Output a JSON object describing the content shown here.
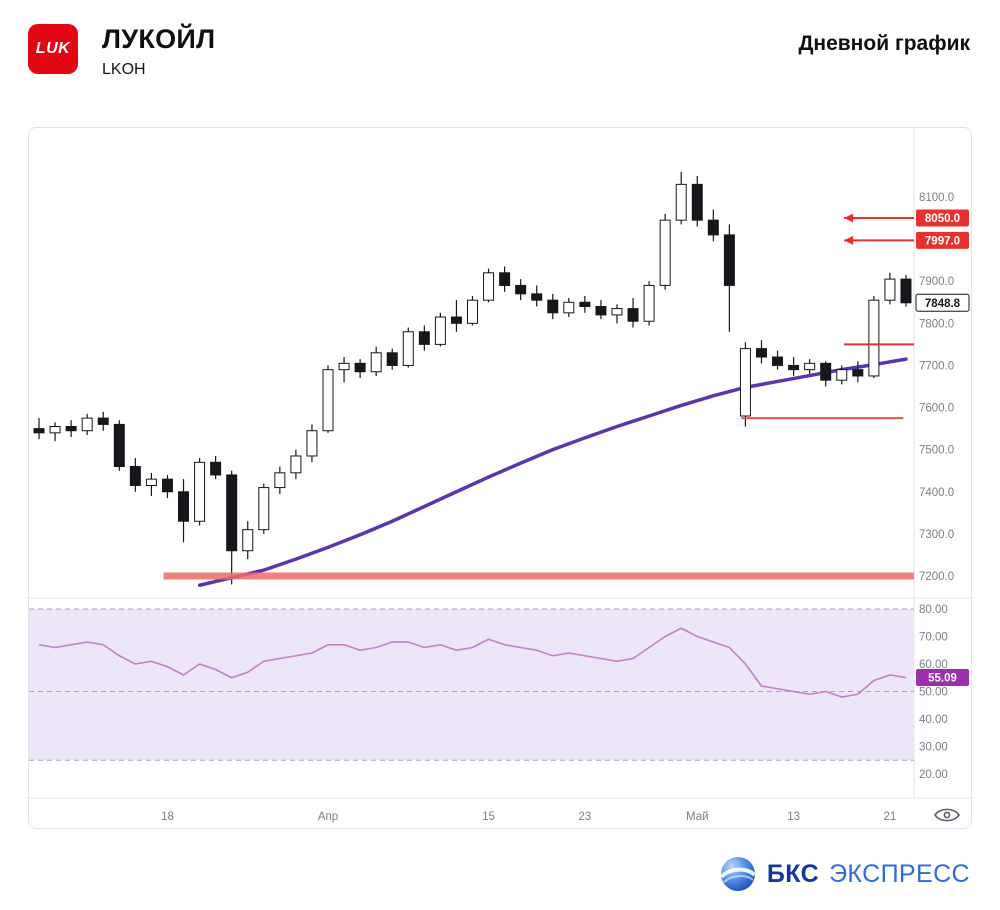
{
  "header": {
    "logo_text": "LUK",
    "title": "ЛУКОЙЛ",
    "ticker": "LKOH",
    "timeframe": "Дневной график"
  },
  "footer": {
    "brand_bold": "БКС",
    "brand_rest": "ЭКСПРЕСС"
  },
  "colors": {
    "candle": "#17171b",
    "axis_text": "#7a7e87",
    "separator": "#e3e3e8",
    "level_red": "#e8312f",
    "support_thick_red": "#f26b66",
    "ma_purple": "#5a35b0",
    "rsi_line": "#c57fc3",
    "rsi_badge": "#9b2fae",
    "rsi_band": "#ece6f8",
    "rsi_guide": "#a9a3b8"
  },
  "chart_data": {
    "type": "candlestick",
    "title": "ЛУКОЙЛ (LKOH) — дневной график",
    "legend_position": "none",
    "grid": false,
    "price_axis": {
      "range": [
        7200,
        8100
      ],
      "ticks": [
        8100,
        7900,
        7800,
        7700,
        7600,
        7500,
        7400,
        7300,
        7200
      ],
      "tick_labels": [
        "8100.0",
        "7900.0",
        "7800.0",
        "7700.0",
        "7600.0",
        "7500.0",
        "7400.0",
        "7300.0",
        "7200.0"
      ],
      "last_price": 7848.8,
      "last_price_label": "7848.8"
    },
    "time_axis": {
      "ticks": [
        {
          "index": 8,
          "label": "18"
        },
        {
          "index": 18,
          "label": "Апр"
        },
        {
          "index": 28,
          "label": "15"
        },
        {
          "index": 34,
          "label": "23"
        },
        {
          "index": 41,
          "label": "Май"
        },
        {
          "index": 47,
          "label": "13"
        },
        {
          "index": 53,
          "label": "21"
        }
      ]
    },
    "candles": [
      [
        7550,
        7575,
        7525,
        7540
      ],
      [
        7540,
        7565,
        7520,
        7555
      ],
      [
        7555,
        7570,
        7530,
        7545
      ],
      [
        7545,
        7585,
        7535,
        7575
      ],
      [
        7575,
        7590,
        7545,
        7560
      ],
      [
        7560,
        7570,
        7450,
        7460
      ],
      [
        7460,
        7480,
        7400,
        7415
      ],
      [
        7415,
        7445,
        7390,
        7430
      ],
      [
        7430,
        7440,
        7385,
        7400
      ],
      [
        7400,
        7430,
        7280,
        7330
      ],
      [
        7330,
        7480,
        7320,
        7470
      ],
      [
        7470,
        7485,
        7430,
        7440
      ],
      [
        7440,
        7450,
        7180,
        7260
      ],
      [
        7260,
        7330,
        7240,
        7310
      ],
      [
        7310,
        7420,
        7300,
        7410
      ],
      [
        7410,
        7460,
        7395,
        7445
      ],
      [
        7445,
        7500,
        7430,
        7485
      ],
      [
        7485,
        7560,
        7470,
        7545
      ],
      [
        7545,
        7700,
        7540,
        7690
      ],
      [
        7690,
        7720,
        7660,
        7705
      ],
      [
        7705,
        7715,
        7670,
        7685
      ],
      [
        7685,
        7745,
        7675,
        7730
      ],
      [
        7730,
        7740,
        7690,
        7700
      ],
      [
        7700,
        7790,
        7695,
        7780
      ],
      [
        7780,
        7795,
        7735,
        7750
      ],
      [
        7750,
        7825,
        7745,
        7815
      ],
      [
        7815,
        7855,
        7780,
        7800
      ],
      [
        7800,
        7865,
        7795,
        7855
      ],
      [
        7855,
        7930,
        7850,
        7920
      ],
      [
        7920,
        7935,
        7875,
        7890
      ],
      [
        7890,
        7905,
        7855,
        7870
      ],
      [
        7870,
        7890,
        7840,
        7855
      ],
      [
        7855,
        7870,
        7810,
        7825
      ],
      [
        7825,
        7860,
        7815,
        7850
      ],
      [
        7850,
        7865,
        7825,
        7840
      ],
      [
        7840,
        7855,
        7810,
        7820
      ],
      [
        7820,
        7845,
        7800,
        7835
      ],
      [
        7835,
        7860,
        7790,
        7805
      ],
      [
        7805,
        7900,
        7795,
        7890
      ],
      [
        7890,
        8060,
        7880,
        8045
      ],
      [
        8045,
        8160,
        8035,
        8130
      ],
      [
        8130,
        8150,
        8030,
        8045
      ],
      [
        8045,
        8070,
        7995,
        8010
      ],
      [
        8010,
        8035,
        7780,
        7890
      ],
      [
        7580,
        7755,
        7555,
        7740
      ],
      [
        7740,
        7760,
        7705,
        7720
      ],
      [
        7720,
        7735,
        7690,
        7700
      ],
      [
        7700,
        7720,
        7675,
        7690
      ],
      [
        7690,
        7715,
        7680,
        7705
      ],
      [
        7705,
        7710,
        7650,
        7665
      ],
      [
        7665,
        7700,
        7655,
        7690
      ],
      [
        7690,
        7710,
        7660,
        7675
      ],
      [
        7675,
        7865,
        7670,
        7855
      ],
      [
        7855,
        7920,
        7845,
        7905
      ],
      [
        7905,
        7915,
        7840,
        7848.8
      ]
    ],
    "ma_line": {
      "name": "moving-average",
      "color": "#5a35b0",
      "points": [
        [
          10,
          7178
        ],
        [
          12,
          7196
        ],
        [
          14,
          7214
        ],
        [
          16,
          7240
        ],
        [
          18,
          7268
        ],
        [
          20,
          7298
        ],
        [
          22,
          7330
        ],
        [
          24,
          7365
        ],
        [
          26,
          7400
        ],
        [
          28,
          7435
        ],
        [
          30,
          7468
        ],
        [
          32,
          7500
        ],
        [
          34,
          7528
        ],
        [
          36,
          7555
        ],
        [
          38,
          7580
        ],
        [
          40,
          7605
        ],
        [
          42,
          7628
        ],
        [
          44,
          7648
        ],
        [
          46,
          7662
        ],
        [
          48,
          7676
        ],
        [
          50,
          7690
        ],
        [
          52,
          7702
        ],
        [
          54,
          7715
        ]
      ]
    },
    "levels": [
      {
        "price": 8050.0,
        "label": "8050.0",
        "badge": true,
        "arrow": true,
        "x0": 0.921,
        "x1": 1.0,
        "width": 2,
        "color": "#e8312f"
      },
      {
        "price": 7997.0,
        "label": "7997.0",
        "badge": true,
        "arrow": true,
        "x0": 0.921,
        "x1": 1.0,
        "width": 2,
        "color": "#e8312f"
      },
      {
        "price": 7750.0,
        "x0": 0.921,
        "x1": 1.0,
        "width": 2,
        "color": "#e8312f"
      },
      {
        "price": 7575.0,
        "x0": 0.805,
        "x1": 0.988,
        "width": 2,
        "color": "#f0504e"
      },
      {
        "price": 7200.0,
        "x0": 0.152,
        "x1": 1.0,
        "width": 7,
        "color": "#f26b66",
        "opacity": 0.85
      }
    ],
    "rsi": {
      "name": "RSI",
      "color": "#c57fc3",
      "badge_color": "#9b2fae",
      "band": [
        25,
        80
      ],
      "band_color": "#ece6f8",
      "guides": [
        80,
        50,
        25
      ],
      "axis_ticks": [
        80,
        70,
        60,
        50,
        40,
        30,
        20
      ],
      "axis_labels": [
        "80.00",
        "70.00",
        "60.00",
        "50.00",
        "40.00",
        "30.00",
        "20.00"
      ],
      "current": 55.09,
      "current_label": "55.09",
      "values": [
        67,
        66,
        67,
        68,
        67,
        63,
        60,
        61,
        59,
        56,
        60,
        58,
        55,
        57,
        61,
        62,
        63,
        64,
        67,
        67,
        65,
        66,
        68,
        68,
        66,
        67,
        65,
        66,
        69,
        67,
        66,
        65,
        63,
        64,
        63,
        62,
        61,
        62,
        66,
        70,
        73,
        70,
        68,
        66,
        60,
        52,
        51,
        50,
        49,
        50,
        48,
        49,
        54,
        56,
        55.09
      ]
    }
  }
}
